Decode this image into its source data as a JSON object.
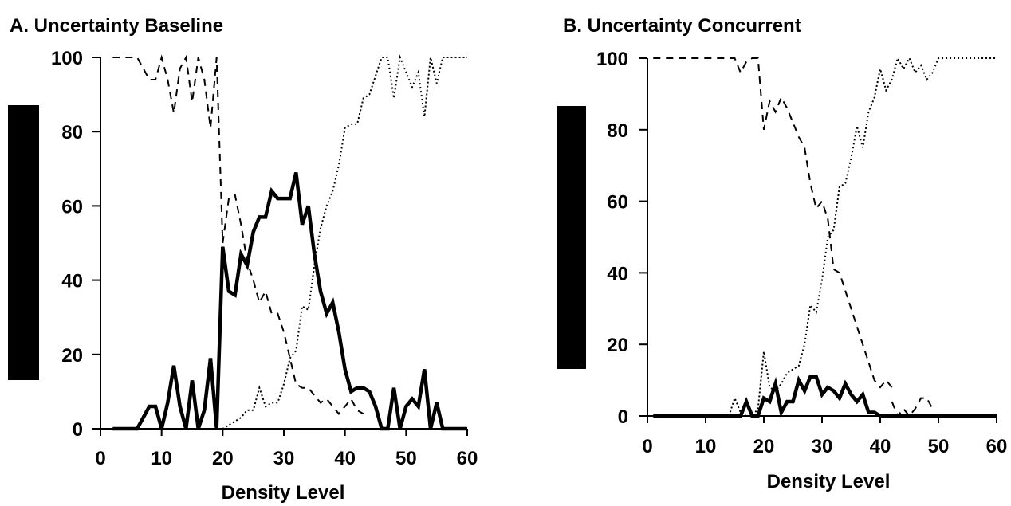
{
  "chart_data": [
    {
      "type": "line",
      "title": "A. Uncertainty Baseline",
      "xlabel": "Density Level",
      "ylabel": "",
      "xlim": [
        0,
        60
      ],
      "ylim": [
        0,
        100
      ],
      "xticks": [
        0,
        10,
        20,
        30,
        40,
        50,
        60
      ],
      "yticks": [
        0,
        20,
        40,
        60,
        80,
        100
      ],
      "grid": false,
      "series": [
        {
          "style": "solid",
          "x": [
            2,
            3,
            4,
            5,
            6,
            7,
            8,
            9,
            10,
            11,
            12,
            13,
            14,
            15,
            16,
            17,
            18,
            19,
            20,
            21,
            22,
            23,
            24,
            25,
            26,
            27,
            28,
            29,
            30,
            31,
            32,
            33,
            34,
            35,
            36,
            37,
            38,
            39,
            40,
            41,
            42,
            43,
            44,
            45,
            46,
            47,
            48,
            49,
            50,
            51,
            52,
            53,
            54,
            55,
            56,
            57,
            58,
            59,
            60
          ],
          "y": [
            0,
            0,
            0,
            0,
            0,
            3,
            6,
            6,
            0,
            7,
            17,
            6,
            0,
            13,
            0,
            5,
            19,
            0,
            49,
            37,
            36,
            47,
            44,
            53,
            57,
            57,
            64,
            62,
            62,
            62,
            69,
            55,
            60,
            47,
            37,
            31,
            34,
            26,
            16,
            10,
            11,
            11,
            10,
            6,
            0,
            0,
            11,
            0,
            6,
            8,
            6,
            16,
            0,
            7,
            0,
            0,
            0,
            0,
            0
          ]
        },
        {
          "style": "dashed",
          "x": [
            2,
            3,
            4,
            5,
            6,
            7,
            8,
            9,
            10,
            11,
            12,
            13,
            14,
            15,
            16,
            17,
            18,
            19,
            20,
            21,
            22,
            23,
            24,
            25,
            26,
            27,
            28,
            29,
            30,
            31,
            32,
            33,
            34,
            35,
            36,
            37,
            38,
            39,
            40,
            41,
            42,
            43
          ],
          "y": [
            100,
            100,
            100,
            100,
            100,
            97,
            94,
            94,
            100,
            94,
            85,
            97,
            100,
            88,
            100,
            94,
            81,
            100,
            50,
            62,
            63,
            55,
            45,
            40,
            34,
            37,
            31,
            31,
            26,
            19,
            12,
            11,
            11,
            9,
            7,
            8,
            6,
            4,
            6,
            8,
            5,
            4
          ]
        },
        {
          "style": "dotted",
          "x": [
            18,
            19,
            20,
            21,
            22,
            23,
            24,
            25,
            26,
            27,
            28,
            29,
            30,
            31,
            32,
            33,
            34,
            35,
            36,
            37,
            38,
            39,
            40,
            41,
            42,
            43,
            44,
            45,
            46,
            47,
            48,
            49,
            50,
            51,
            52,
            53,
            54,
            55,
            56,
            57,
            58,
            59,
            60
          ],
          "y": [
            0,
            0,
            0,
            1,
            2,
            3,
            5,
            5,
            11,
            6,
            7,
            7,
            12,
            19,
            21,
            33,
            32,
            44,
            54,
            60,
            64,
            71,
            81,
            82,
            82,
            89,
            90,
            95,
            100,
            100,
            89,
            100,
            96,
            92,
            96,
            84,
            100,
            93,
            100,
            100,
            100,
            100,
            100
          ]
        }
      ]
    },
    {
      "type": "line",
      "title": "B. Uncertainty Concurrent",
      "xlabel": "Density Level",
      "ylabel": "",
      "xlim": [
        0,
        60
      ],
      "ylim": [
        0,
        100
      ],
      "xticks": [
        0,
        10,
        20,
        30,
        40,
        50,
        60
      ],
      "yticks": [
        0,
        20,
        40,
        60,
        80,
        100
      ],
      "grid": false,
      "series": [
        {
          "style": "solid",
          "x": [
            1,
            2,
            3,
            4,
            5,
            6,
            7,
            8,
            9,
            10,
            11,
            12,
            13,
            14,
            15,
            16,
            17,
            18,
            19,
            20,
            21,
            22,
            23,
            24,
            25,
            26,
            27,
            28,
            29,
            30,
            31,
            32,
            33,
            34,
            35,
            36,
            37,
            38,
            39,
            40,
            41,
            42,
            43,
            44,
            45,
            46,
            47,
            48,
            49,
            50,
            51,
            52,
            53,
            54,
            55,
            56,
            57,
            58,
            59,
            60
          ],
          "y": [
            0,
            0,
            0,
            0,
            0,
            0,
            0,
            0,
            0,
            0,
            0,
            0,
            0,
            0,
            0,
            0,
            4,
            0,
            0,
            5,
            4,
            9,
            1,
            4,
            4,
            10,
            7,
            11,
            11,
            6,
            8,
            7,
            5,
            9,
            6,
            4,
            6,
            1,
            1,
            0,
            0,
            0,
            0,
            0,
            0,
            0,
            0,
            0,
            0,
            0,
            0,
            0,
            0,
            0,
            0,
            0,
            0,
            0,
            0,
            0
          ]
        },
        {
          "style": "dashed",
          "x": [
            1,
            2,
            3,
            4,
            5,
            6,
            7,
            8,
            9,
            10,
            11,
            12,
            13,
            14,
            15,
            16,
            17,
            18,
            19,
            20,
            21,
            22,
            23,
            24,
            25,
            26,
            27,
            28,
            29,
            30,
            31,
            32,
            33,
            34,
            35,
            36,
            37,
            38,
            39,
            40,
            41,
            42
          ],
          "y": [
            100,
            100,
            100,
            100,
            100,
            100,
            100,
            100,
            100,
            100,
            100,
            100,
            100,
            100,
            100,
            96,
            99,
            100,
            100,
            80,
            88,
            85,
            89,
            86,
            82,
            78,
            75,
            65,
            58,
            60,
            55,
            41,
            40,
            35,
            30,
            25,
            20,
            15,
            10,
            8,
            10,
            8
          ]
        },
        {
          "style": "dotted",
          "x": [
            14,
            15,
            16,
            17,
            18,
            19,
            20,
            21,
            22,
            23,
            24,
            25,
            26,
            27,
            28,
            29,
            30,
            31,
            32,
            33,
            34,
            35,
            36,
            37,
            38,
            39,
            40,
            41,
            42,
            43,
            44,
            45,
            46,
            47,
            48,
            49,
            50,
            51,
            52,
            53,
            54,
            55,
            56,
            57,
            58,
            59,
            60
          ],
          "y": [
            0,
            5,
            1,
            0,
            0,
            2,
            18,
            8,
            7,
            9,
            12,
            13,
            14,
            20,
            31,
            29,
            38,
            50,
            52,
            64,
            65,
            72,
            81,
            75,
            85,
            89,
            97,
            91,
            94,
            100,
            97,
            100,
            96,
            98,
            94,
            96,
            100,
            100,
            100,
            100,
            100,
            100,
            100,
            100,
            100,
            100,
            100
          ]
        },
        {
          "style": "dashed",
          "x": [
            42,
            43,
            44,
            45,
            46,
            47,
            48,
            49
          ],
          "y": [
            4,
            0,
            2,
            0,
            2,
            5,
            5,
            2
          ]
        }
      ]
    }
  ]
}
